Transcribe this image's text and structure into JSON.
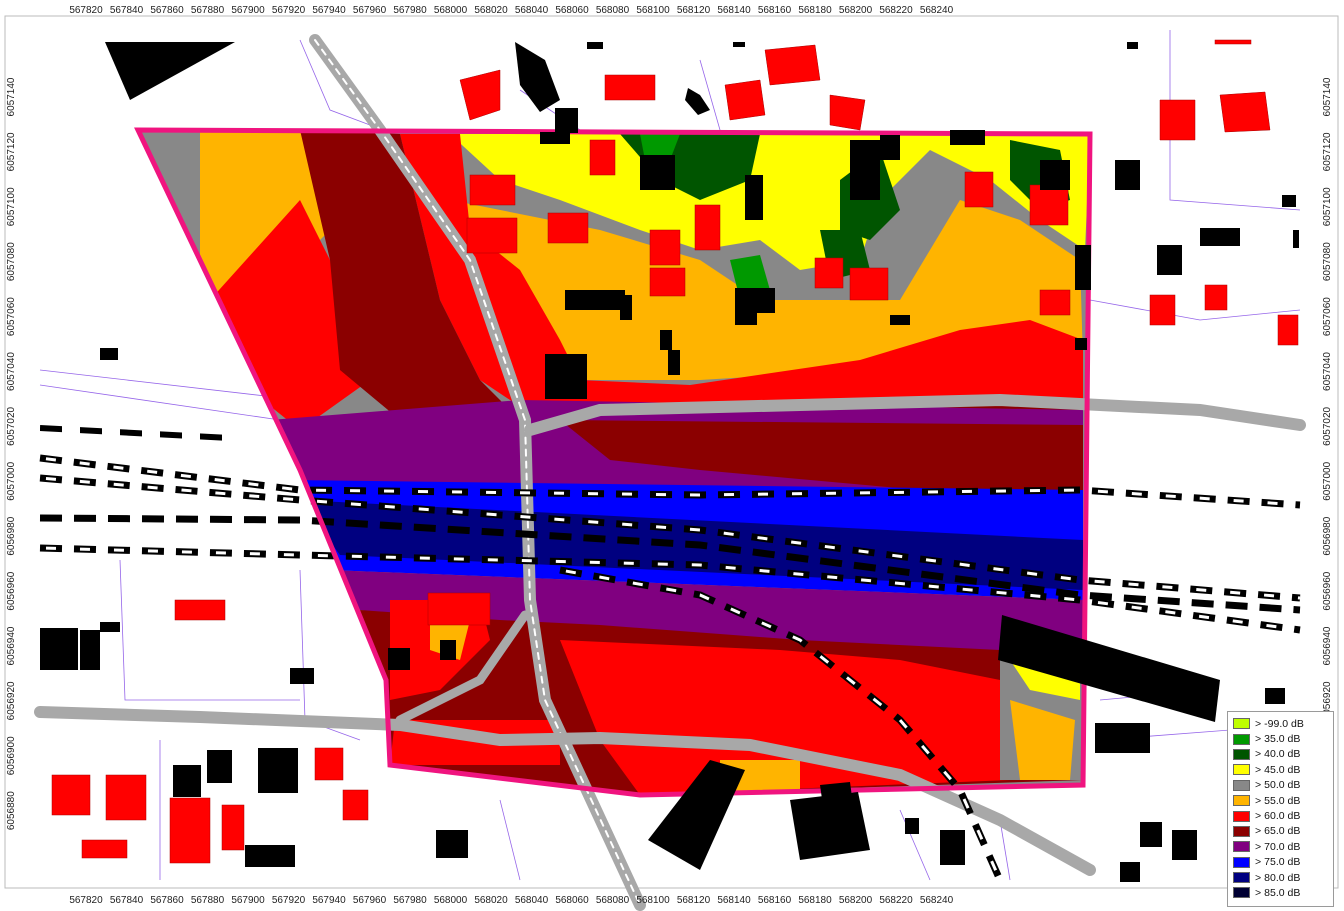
{
  "map": {
    "x_ticks": [
      "567820",
      "567840",
      "567860",
      "567880",
      "567900",
      "567920",
      "567940",
      "567960",
      "567980",
      "568000",
      "568020",
      "568040",
      "568060",
      "568080",
      "568100",
      "568120",
      "568140",
      "568160",
      "568180",
      "568200",
      "568220",
      "568240"
    ],
    "y_ticks": [
      "6057140",
      "6057120",
      "6057100",
      "6057080",
      "6057060",
      "6057040",
      "6057020",
      "6057000",
      "6056980",
      "6056960",
      "6056940",
      "6056920",
      "6056900",
      "6056880"
    ],
    "colors": {
      "boundary": "#f0147f",
      "building_residential": "#ff0000",
      "building_other": "#000000",
      "road": "#a8a8a8",
      "parcel_lines": "#7b3fe4"
    }
  },
  "legend": {
    "items": [
      {
        "gt": ">",
        "label": "-99.0 dB",
        "color": "#bfff00"
      },
      {
        "gt": ">",
        "label": "35.0 dB",
        "color": "#009900"
      },
      {
        "gt": ">",
        "label": "40.0 dB",
        "color": "#005500"
      },
      {
        "gt": ">",
        "label": "45.0 dB",
        "color": "#ffff00"
      },
      {
        "gt": ">",
        "label": "50.0 dB",
        "color": "#888888"
      },
      {
        "gt": ">",
        "label": "55.0 dB",
        "color": "#ffb400"
      },
      {
        "gt": ">",
        "label": "60.0 dB",
        "color": "#ff0000"
      },
      {
        "gt": ">",
        "label": "65.0 dB",
        "color": "#8b0000"
      },
      {
        "gt": ">",
        "label": "70.0 dB",
        "color": "#800080"
      },
      {
        "gt": ">",
        "label": "75.0 dB",
        "color": "#0000ff"
      },
      {
        "gt": ">",
        "label": "80.0 dB",
        "color": "#000080"
      },
      {
        "gt": ">",
        "label": "85.0 dB",
        "color": "#000033"
      }
    ]
  }
}
